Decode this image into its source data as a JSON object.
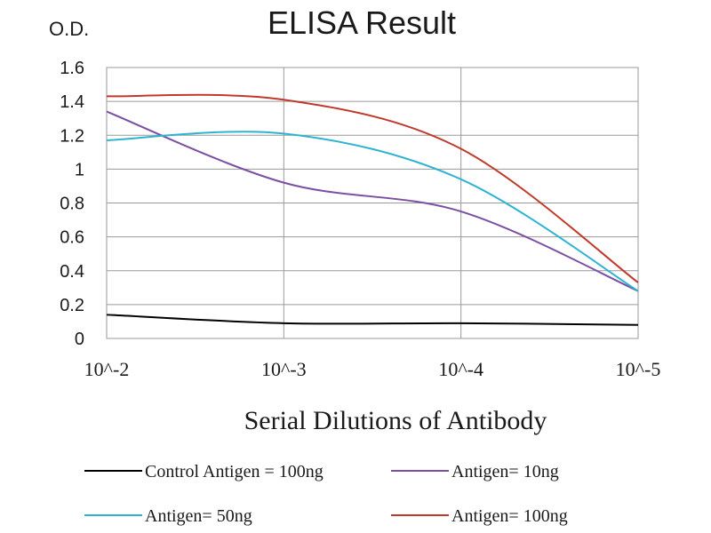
{
  "chart_data": {
    "type": "line",
    "title": "ELISA Result",
    "ylabel": "O.D.",
    "xlabel": "Serial Dilutions  of Antibody",
    "x_tick_labels": [
      "10^-2",
      "10^-3",
      "10^-4",
      "10^-5"
    ],
    "y_tick_labels": [
      "0",
      "0.2",
      "0.4",
      "0.6",
      "0.8",
      "1",
      "1.2",
      "1.4",
      "1.6"
    ],
    "ylim": [
      0,
      1.6
    ],
    "grid": true,
    "legend_position": "bottom",
    "series": [
      {
        "name": "Control Antigen = 100ng",
        "color": "#000000",
        "values": [
          {
            "x": 0.01,
            "y": 0.14
          },
          {
            "x": 0.001,
            "y": 0.09
          },
          {
            "x": 0.0001,
            "y": 0.09
          },
          {
            "x": 1e-05,
            "y": 0.08
          }
        ]
      },
      {
        "name": "Antigen= 10ng",
        "color": "#7b4fa3",
        "values": [
          {
            "x": 0.01,
            "y": 1.34
          },
          {
            "x": 0.001,
            "y": 0.92
          },
          {
            "x": 0.0001,
            "y": 0.75
          },
          {
            "x": 1e-05,
            "y": 0.28
          }
        ]
      },
      {
        "name": "Antigen= 50ng",
        "color": "#2fb3d1",
        "values": [
          {
            "x": 0.01,
            "y": 1.17
          },
          {
            "x": 0.001,
            "y": 1.21
          },
          {
            "x": 0.0001,
            "y": 0.94
          },
          {
            "x": 1e-05,
            "y": 0.28
          }
        ]
      },
      {
        "name": "Antigen= 100ng",
        "color": "#c0392b",
        "values": [
          {
            "x": 0.01,
            "y": 1.43
          },
          {
            "x": 0.001,
            "y": 1.41
          },
          {
            "x": 0.0001,
            "y": 1.12
          },
          {
            "x": 1e-05,
            "y": 0.33
          }
        ]
      }
    ]
  }
}
